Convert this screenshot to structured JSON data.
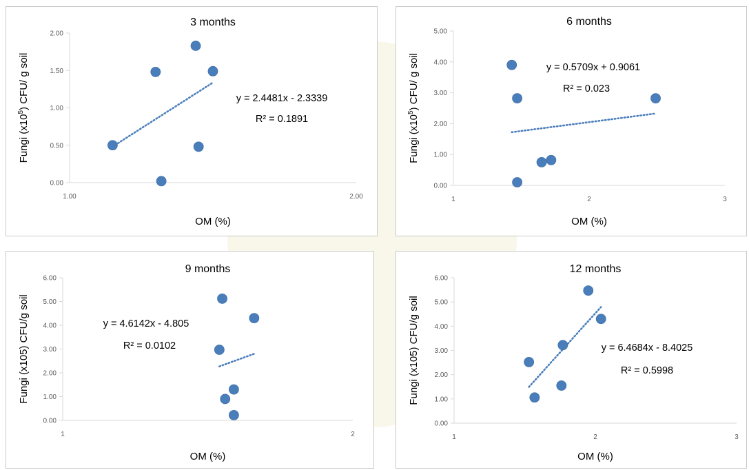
{
  "colors": {
    "marker": "#4a7ebb",
    "trendline": "#4a7ebb",
    "axis": "#d9d9d9",
    "text": "#000000",
    "tick_text": "#595959"
  },
  "chart_data": [
    {
      "type": "scatter",
      "title": "3 months",
      "xlabel": "OM (%)",
      "ylabel_parts": {
        "pre": "Fungi (x10",
        "sup": "5",
        "post": ") CFU/ g soil"
      },
      "xlim": [
        1.0,
        2.0
      ],
      "ylim": [
        0.0,
        2.0
      ],
      "xticks": [
        1.0,
        2.0
      ],
      "xtick_labels": [
        "1.00",
        "2.00"
      ],
      "yticks": [
        0,
        0.5,
        1.0,
        1.5,
        2.0
      ],
      "ytick_labels": [
        "0.00",
        "0.50",
        "1.00",
        "1.50",
        "2.00"
      ],
      "points": [
        [
          1.15,
          0.5
        ],
        [
          1.3,
          1.48
        ],
        [
          1.32,
          0.02
        ],
        [
          1.44,
          1.83
        ],
        [
          1.45,
          0.48
        ],
        [
          1.5,
          1.49
        ]
      ],
      "trendline": {
        "slope": 2.4481,
        "intercept": -2.3339,
        "x_range": [
          1.15,
          1.5
        ]
      },
      "equation": "y = 2.4481x - 2.3339",
      "r2": "R² = 0.1891"
    },
    {
      "type": "scatter",
      "title": "6 months",
      "xlabel": "OM (%)",
      "ylabel_parts": {
        "pre": "Fungi (x10",
        "sup": "5",
        "post": ") CFU/ g soil"
      },
      "xlim": [
        1,
        3
      ],
      "ylim": [
        0,
        5
      ],
      "xticks": [
        1,
        2,
        3
      ],
      "xtick_labels": [
        "1",
        "2",
        "3"
      ],
      "yticks": [
        0,
        1,
        2,
        3,
        4,
        5
      ],
      "ytick_labels": [
        "0.00",
        "1.00",
        "2.00",
        "3.00",
        "4.00",
        "5.00"
      ],
      "points": [
        [
          1.43,
          3.9
        ],
        [
          1.47,
          2.82
        ],
        [
          1.47,
          0.1
        ],
        [
          1.65,
          0.75
        ],
        [
          1.72,
          0.82
        ],
        [
          2.49,
          2.82
        ]
      ],
      "trendline": {
        "slope": 0.5709,
        "intercept": 0.9061,
        "x_range": [
          1.43,
          2.49
        ]
      },
      "equation": "y = 0.5709x + 0.9061",
      "r2": "R² = 0.023"
    },
    {
      "type": "scatter",
      "title": "9 months",
      "xlabel": "OM (%)",
      "ylabel_parts": {
        "pre": "Fungi (x105) CFU/g soil",
        "sup": "",
        "post": ""
      },
      "xlim": [
        1,
        2
      ],
      "ylim": [
        0,
        6
      ],
      "xticks": [
        1,
        2
      ],
      "xtick_labels": [
        "1",
        "2"
      ],
      "yticks": [
        0,
        1,
        2,
        3,
        4,
        5,
        6
      ],
      "ytick_labels": [
        "0.00",
        "1.00",
        "2.00",
        "3.00",
        "4.00",
        "5.00",
        "6.00"
      ],
      "points": [
        [
          1.54,
          2.97
        ],
        [
          1.55,
          5.12
        ],
        [
          1.56,
          0.9
        ],
        [
          1.59,
          0.22
        ],
        [
          1.59,
          1.3
        ],
        [
          1.66,
          4.3
        ]
      ],
      "trendline": {
        "slope": 4.6142,
        "intercept": -4.805,
        "x_range": [
          1.54,
          1.66
        ],
        "display_intercept": -4.805
      },
      "equation": "y = 4.6142x - 4.805",
      "r2": "R² = 0.0102"
    },
    {
      "type": "scatter",
      "title": "12 months",
      "xlabel": "OM (%)",
      "ylabel_parts": {
        "pre": "Fungi (x105) CFU/g soil",
        "sup": "",
        "post": ""
      },
      "xlim": [
        1,
        3
      ],
      "ylim": [
        0,
        6
      ],
      "xticks": [
        1,
        2,
        3
      ],
      "xtick_labels": [
        "1",
        "2",
        "3"
      ],
      "yticks": [
        0,
        1,
        2,
        3,
        4,
        5,
        6
      ],
      "ytick_labels": [
        "0.00",
        "1.00",
        "2.00",
        "3.00",
        "4.00",
        "5.00",
        "6.00"
      ],
      "points": [
        [
          1.53,
          2.52
        ],
        [
          1.57,
          1.06
        ],
        [
          1.76,
          1.55
        ],
        [
          1.77,
          3.22
        ],
        [
          1.95,
          5.47
        ],
        [
          2.04,
          4.3
        ]
      ],
      "trendline": {
        "slope": 6.4684,
        "intercept": -8.4025,
        "x_range": [
          1.53,
          2.04
        ]
      },
      "equation": "y = 6.4684x - 8.4025",
      "r2": "R² = 0.5998"
    }
  ]
}
